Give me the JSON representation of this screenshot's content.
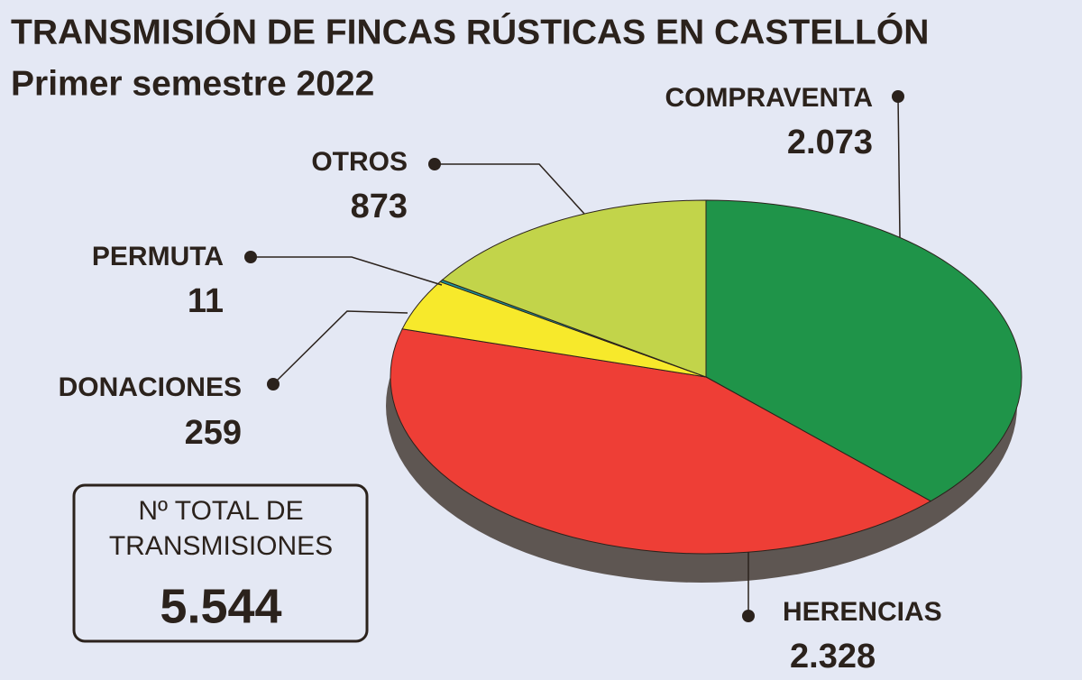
{
  "chart_data": {
    "type": "pie",
    "title": "TRANSMISIÓN DE FINCAS RÚSTICAS EN CASTELLÓN",
    "subtitle": "Primer semestre 2022",
    "categories": [
      "COMPRAVENTA",
      "HERENCIAS",
      "DONACIONES",
      "PERMUTA",
      "OTROS"
    ],
    "values": [
      2073,
      2328,
      259,
      11,
      873
    ],
    "value_labels": [
      "2.073",
      "2.328",
      "259",
      "11",
      "873"
    ],
    "colors": [
      "#1f9449",
      "#ee3e36",
      "#f7e92b",
      "#1a9aa0",
      "#c2d44a"
    ],
    "total": {
      "lines": [
        "Nº TOTAL DE",
        "TRANSMISIONES"
      ],
      "value": "5.544"
    }
  }
}
